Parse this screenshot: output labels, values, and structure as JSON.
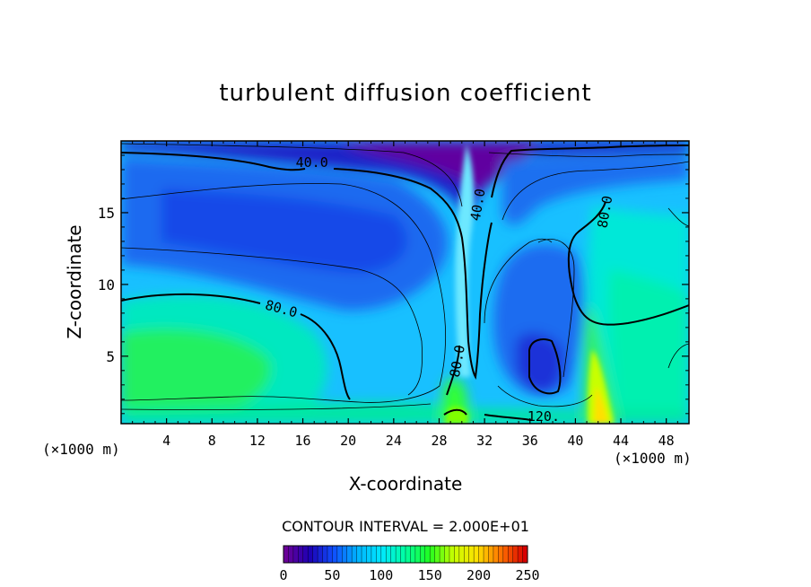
{
  "chart_data": {
    "type": "heatmap",
    "title": "turbulent diffusion coefficient",
    "xlabel": "X-coordinate",
    "ylabel": "Z-coordinate",
    "x_unit": "(×1000 m)",
    "y_unit": "(×1000 m)",
    "xlim": [
      0,
      50
    ],
    "ylim": [
      0.3,
      20
    ],
    "x_ticks": [
      4,
      8,
      12,
      16,
      20,
      24,
      28,
      32,
      36,
      40,
      44,
      48
    ],
    "y_ticks": [
      5,
      10,
      15
    ],
    "contour_interval": "CONTOUR INTERVAL = 2.000E+01",
    "contour_labels": [
      {
        "text": "40.0",
        "x": 16.8,
        "z": 18.2
      },
      {
        "text": "40.0",
        "x": 31.8,
        "z": 15.5
      },
      {
        "text": "80.0",
        "x": 43.0,
        "z": 15.0
      },
      {
        "text": "80.0",
        "x": 14.0,
        "z": 8.0
      },
      {
        "text": "80.0",
        "x": 30.0,
        "z": 4.6
      },
      {
        "text": "120.",
        "x": 37.2,
        "z": 0.5
      }
    ],
    "colorbar": {
      "min": 0,
      "max": 250,
      "tick_values": [
        0,
        50,
        100,
        150,
        200,
        250
      ],
      "tick_labels": [
        "0",
        "50",
        "100",
        "150",
        "200",
        "250"
      ]
    },
    "color_stops": [
      "#6a0098",
      "#1c00b4",
      "#1050ff",
      "#00b4ff",
      "#00e8ff",
      "#00ffa0",
      "#20ff20",
      "#c8ff00",
      "#ffe000",
      "#ff7000",
      "#d80000"
    ]
  }
}
